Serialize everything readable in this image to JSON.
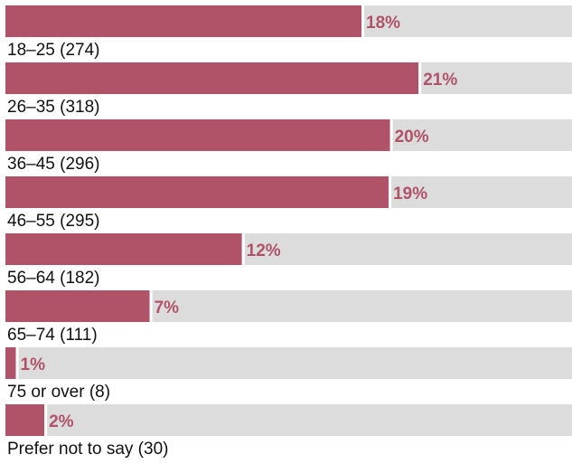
{
  "chart_data": {
    "type": "bar",
    "orientation": "horizontal",
    "categories": [
      "18–25 (274)",
      "26–35 (318)",
      "36–45 (296)",
      "46–55 (295)",
      "56–64 (182)",
      "65–74 (111)",
      "75 or over (8)",
      "Prefer not to say (30)"
    ],
    "values": [
      18.1,
      21.0,
      19.55,
      19.48,
      12.02,
      7.33,
      0.53,
      1.98
    ],
    "value_labels": [
      "18%",
      "21%",
      "20%",
      "19%",
      "12%",
      "7%",
      "1%",
      "2%"
    ],
    "color": "#b05268",
    "track_color": "#dcdcdc",
    "xlim": [
      0,
      28.8
    ]
  }
}
